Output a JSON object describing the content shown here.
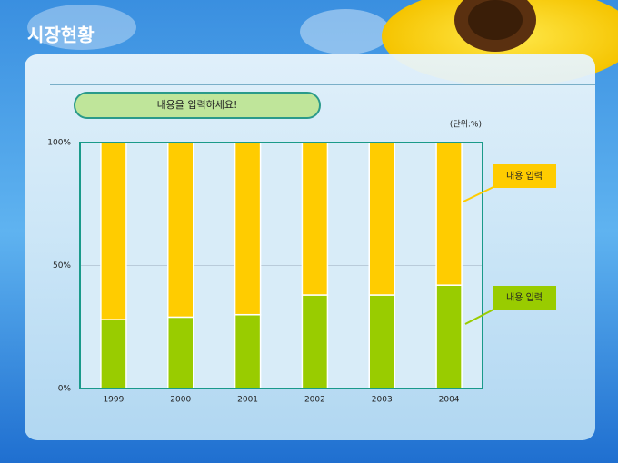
{
  "page_title": "시장현황",
  "chart_data": {
    "type": "stacked_bar",
    "subtitle": "내용을 입력하세요!",
    "unit_note": "(단위:%)",
    "categories": [
      "1999",
      "2000",
      "2001",
      "2002",
      "2003",
      "2004"
    ],
    "series": [
      {
        "name": "내용 입력",
        "color": "#99cc00",
        "values": [
          28,
          29,
          30,
          38,
          38,
          42
        ]
      },
      {
        "name": "내용 입력",
        "color": "#ffcc00",
        "values": [
          72,
          71,
          70,
          62,
          62,
          58
        ]
      }
    ],
    "ylim": [
      0,
      100
    ],
    "yticks": [
      {
        "value": 0,
        "label": "0%"
      },
      {
        "value": 50,
        "label": "50%"
      },
      {
        "value": 100,
        "label": "100%"
      }
    ],
    "grid": true
  }
}
